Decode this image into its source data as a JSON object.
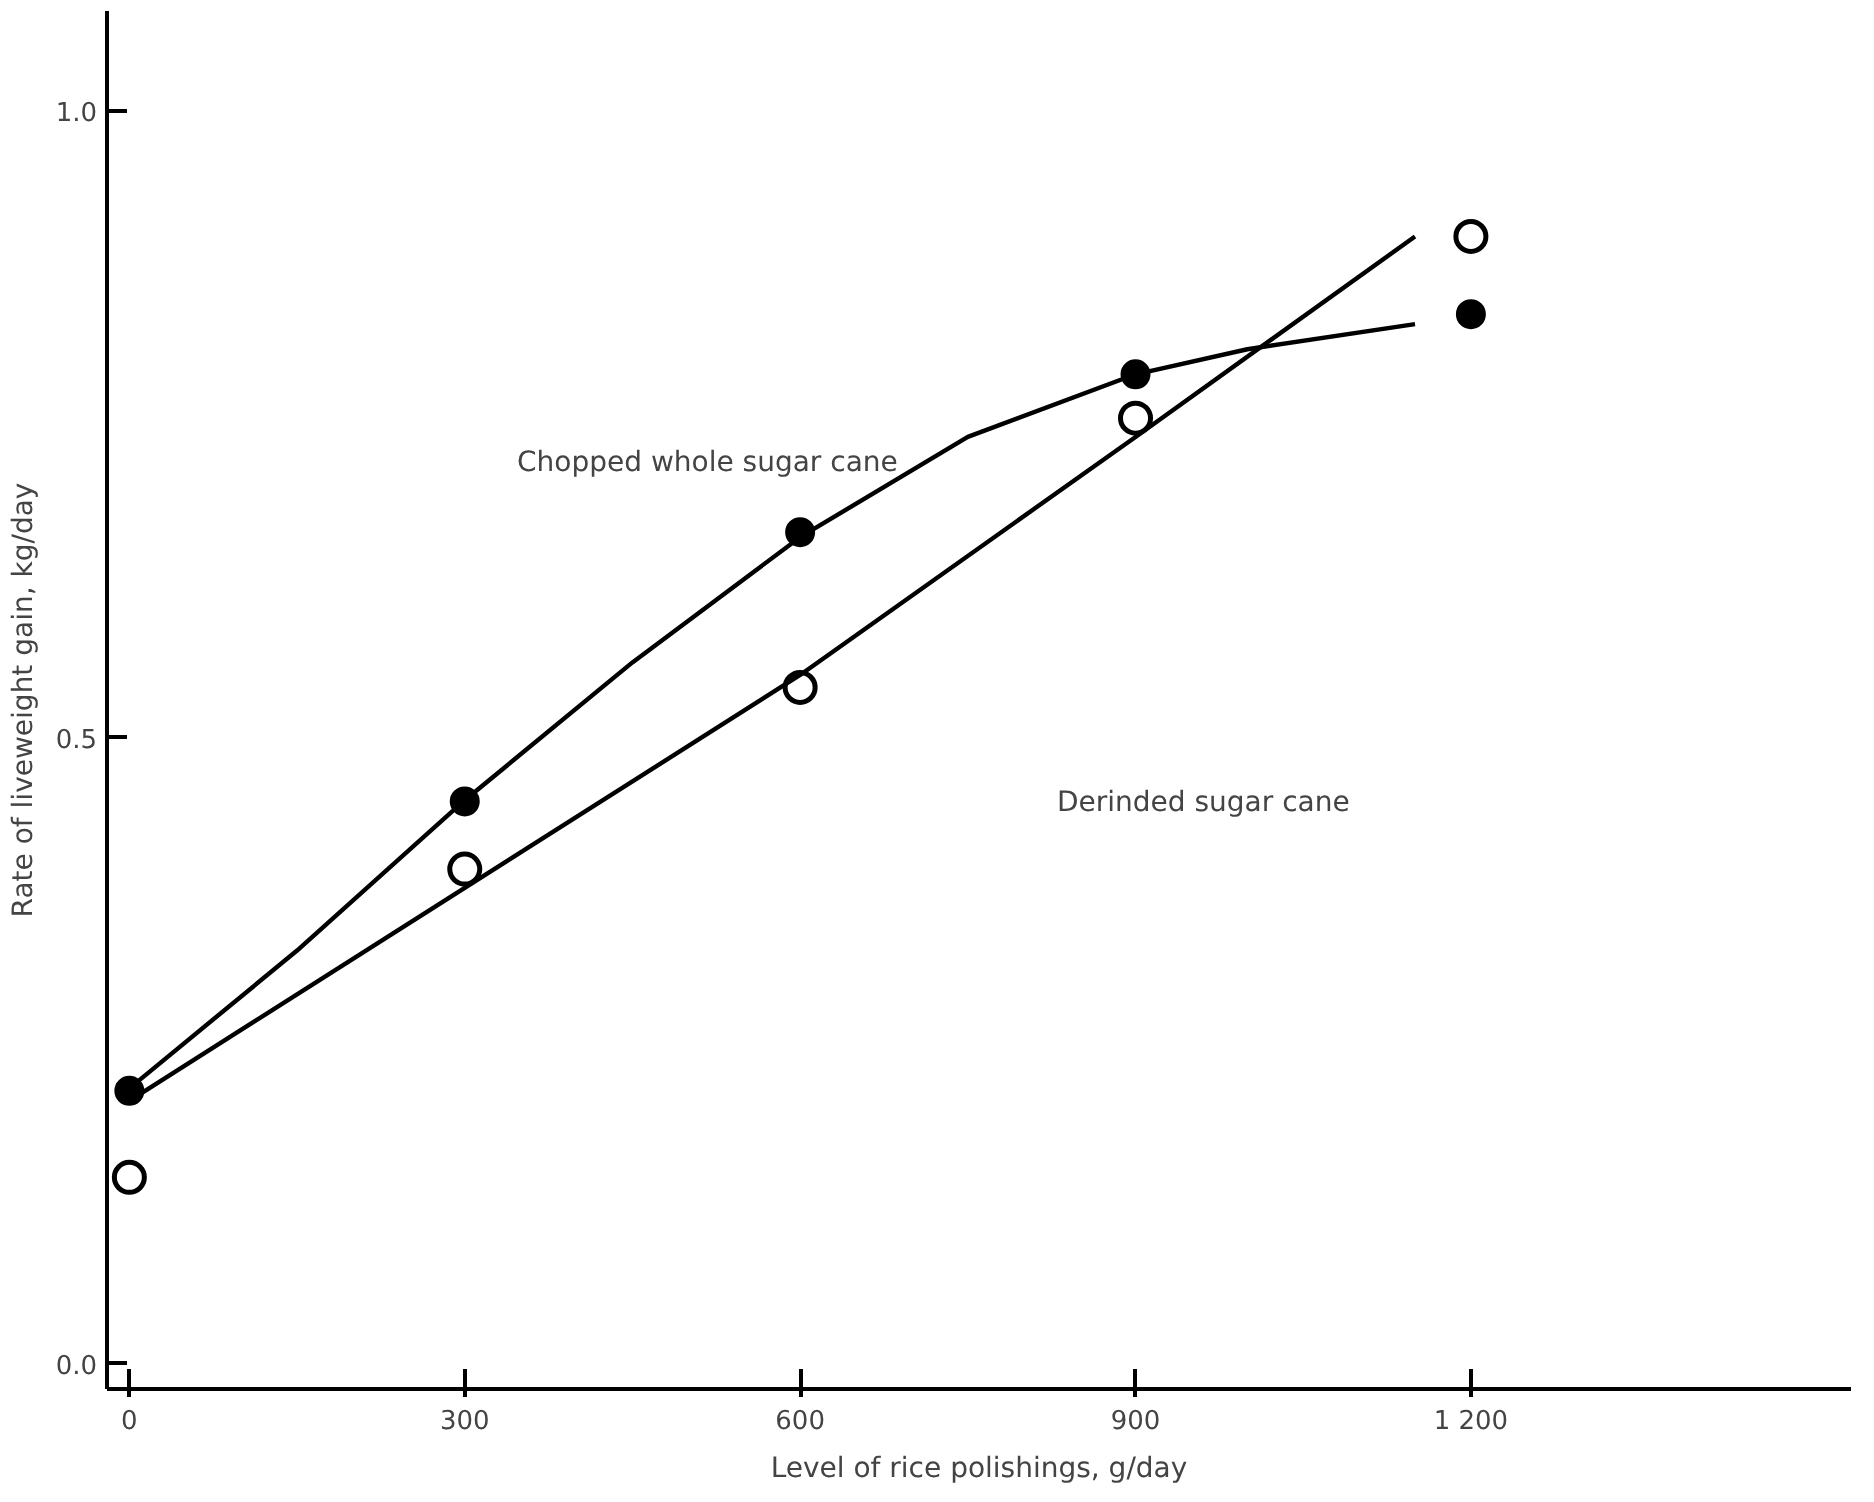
{
  "chart_data": {
    "type": "scatter",
    "xlabel": "Level of rice polishings, g/day",
    "ylabel": "Rate of liveweight gain, kg/day",
    "xlim": [
      -20,
      1540
    ],
    "ylim": [
      -0.02,
      1.08
    ],
    "xticks": [
      0,
      300,
      600,
      900,
      {
        "value": 1200,
        "label": "1 200"
      }
    ],
    "yticks": [
      {
        "value": 0,
        "label": "0.0"
      },
      {
        "value": 0.5,
        "label": "0.5"
      },
      {
        "value": 1.0,
        "label": "1.0"
      }
    ],
    "grid": false,
    "series": [
      {
        "marker": "circle",
        "color": "#000000",
        "x": [
          0,
          300,
          600,
          900,
          1200
        ],
        "values": [
          0.218,
          0.449,
          0.664,
          0.79,
          0.838
        ]
      },
      {
        "marker": "circle_open",
        "color": "#000000",
        "x": [
          0,
          300,
          600,
          900,
          1200
        ],
        "values": [
          0.149,
          0.395,
          0.54,
          0.755,
          0.9
        ]
      },
      {
        "type": "line",
        "color": "#000000",
        "x": [
          0,
          150,
          300,
          450,
          600,
          750,
          900,
          1000,
          1150
        ],
        "values": [
          0.22,
          0.33,
          0.45,
          0.56,
          0.66,
          0.74,
          0.79,
          0.81,
          0.83
        ]
      },
      {
        "type": "line",
        "color": "#000000",
        "x": [
          0,
          300,
          600,
          900,
          1150
        ],
        "values": [
          0.21,
          0.38,
          0.55,
          0.74,
          0.9
        ]
      }
    ],
    "annotations": [
      "Chopped whole sugar cane",
      "Derinded  sugar cane"
    ]
  }
}
